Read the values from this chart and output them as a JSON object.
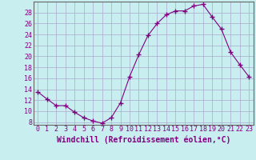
{
  "x": [
    0,
    1,
    2,
    3,
    4,
    5,
    6,
    7,
    8,
    9,
    10,
    11,
    12,
    13,
    14,
    15,
    16,
    17,
    18,
    19,
    20,
    21,
    22,
    23
  ],
  "y": [
    13.5,
    12.2,
    11.0,
    11.0,
    9.8,
    8.8,
    8.2,
    7.8,
    8.8,
    11.5,
    16.3,
    20.3,
    23.8,
    26.0,
    27.6,
    28.3,
    28.3,
    29.2,
    29.5,
    27.2,
    25.0,
    20.8,
    18.5,
    16.3
  ],
  "line_color": "#800080",
  "marker": "+",
  "marker_size": 4,
  "bg_color": "#c8eef0",
  "grid_color": "#aaaacc",
  "xlabel": "Windchill (Refroidissement éolien,°C)",
  "ylabel_ticks": [
    8,
    10,
    12,
    14,
    16,
    18,
    20,
    22,
    24,
    26,
    28
  ],
  "ylim": [
    7.5,
    30.0
  ],
  "xlim": [
    -0.5,
    23.5
  ],
  "xticks": [
    0,
    1,
    2,
    3,
    4,
    5,
    6,
    7,
    8,
    9,
    10,
    11,
    12,
    13,
    14,
    15,
    16,
    17,
    18,
    19,
    20,
    21,
    22,
    23
  ],
  "xlabel_fontsize": 7.0,
  "tick_fontsize": 6.0,
  "label_color": "#800080"
}
